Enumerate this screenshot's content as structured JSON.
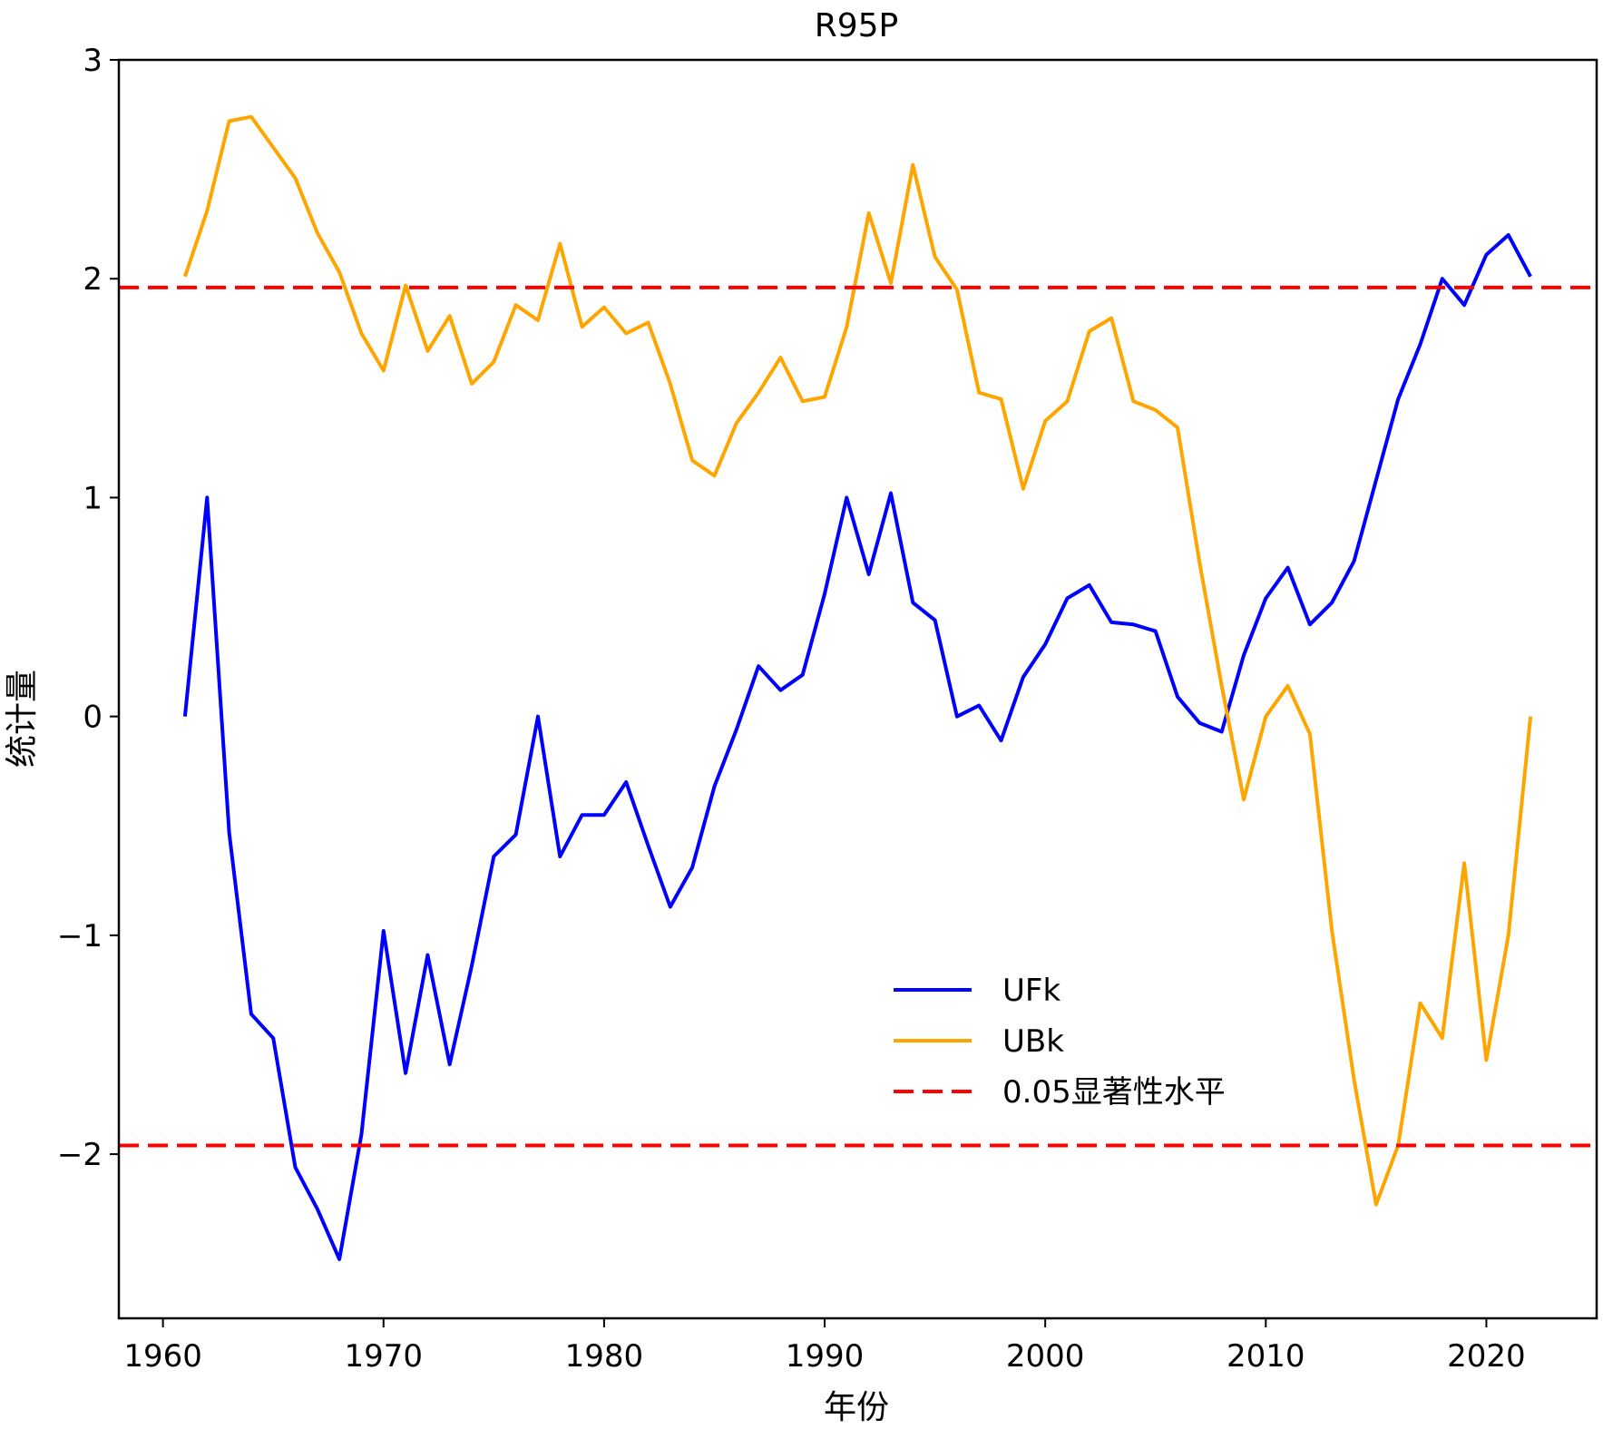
{
  "chart_data": {
    "type": "line",
    "title": "R95P",
    "xlabel": "年份",
    "ylabel": "统计量",
    "xlim": [
      1958,
      2025
    ],
    "ylim": [
      -2.75,
      3
    ],
    "xticks": [
      1960,
      1970,
      1980,
      1990,
      2000,
      2010,
      2020
    ],
    "yticks": [
      -2,
      -1,
      0,
      1,
      2,
      3
    ],
    "ytick_labels": [
      "−2",
      "−1",
      "0",
      "1",
      "2",
      "3"
    ],
    "grid": false,
    "legend_position": "lower-right",
    "x": [
      1961,
      1962,
      1963,
      1964,
      1965,
      1966,
      1967,
      1968,
      1969,
      1970,
      1971,
      1972,
      1973,
      1974,
      1975,
      1976,
      1977,
      1978,
      1979,
      1980,
      1981,
      1982,
      1983,
      1984,
      1985,
      1986,
      1987,
      1988,
      1989,
      1990,
      1991,
      1992,
      1993,
      1994,
      1995,
      1996,
      1997,
      1998,
      1999,
      2000,
      2001,
      2002,
      2003,
      2004,
      2005,
      2006,
      2007,
      2008,
      2009,
      2010,
      2011,
      2012,
      2013,
      2014,
      2015,
      2016,
      2017,
      2018,
      2019,
      2020,
      2021,
      2022
    ],
    "series": [
      {
        "name": "UFk",
        "color": "#0000ff",
        "style": "solid",
        "values": [
          0,
          1.0,
          -0.53,
          -1.36,
          -1.47,
          -2.06,
          -2.25,
          -2.48,
          -1.91,
          -0.98,
          -1.63,
          -1.09,
          -1.59,
          -1.14,
          -0.64,
          -0.54,
          0.0,
          -0.64,
          -0.45,
          -0.45,
          -0.3,
          -0.59,
          -0.87,
          -0.69,
          -0.32,
          -0.06,
          0.23,
          0.12,
          0.19,
          0.56,
          1.0,
          0.65,
          1.02,
          0.52,
          0.44,
          0.0,
          0.05,
          -0.11,
          0.18,
          0.33,
          0.54,
          0.6,
          0.43,
          0.42,
          0.39,
          0.09,
          -0.03,
          -0.07,
          0.28,
          0.54,
          0.68,
          0.42,
          0.52,
          0.71,
          1.08,
          1.45,
          1.7,
          2.0,
          1.88,
          2.11,
          2.2,
          2.01
        ]
      },
      {
        "name": "UBk",
        "color": "#ffa500",
        "style": "solid",
        "values": [
          2.01,
          2.31,
          2.72,
          2.74,
          2.6,
          2.46,
          2.21,
          2.03,
          1.75,
          1.58,
          1.97,
          1.67,
          1.83,
          1.52,
          1.62,
          1.88,
          1.81,
          2.16,
          1.78,
          1.87,
          1.75,
          1.8,
          1.52,
          1.17,
          1.1,
          1.34,
          1.48,
          1.64,
          1.44,
          1.46,
          1.78,
          2.3,
          1.98,
          2.52,
          2.1,
          1.95,
          1.48,
          1.45,
          1.04,
          1.35,
          1.44,
          1.76,
          1.82,
          1.44,
          1.4,
          1.32,
          0.7,
          0.14,
          -0.38,
          0.0,
          0.14,
          -0.08,
          -0.98,
          -1.66,
          -2.23,
          -1.96,
          -1.31,
          -1.47,
          -0.67,
          -1.57,
          -1.0,
          0.0
        ]
      },
      {
        "name": "0.05显著性水平",
        "color": "#ff0000",
        "style": "dashed",
        "hlines": [
          1.96,
          -1.96
        ]
      }
    ],
    "legend": [
      {
        "label": "UFk",
        "color": "#0000ff",
        "style": "solid"
      },
      {
        "label": "UBk",
        "color": "#ffa500",
        "style": "solid"
      },
      {
        "label": "0.05显著性水平",
        "color": "#ff0000",
        "style": "dashed"
      }
    ]
  }
}
